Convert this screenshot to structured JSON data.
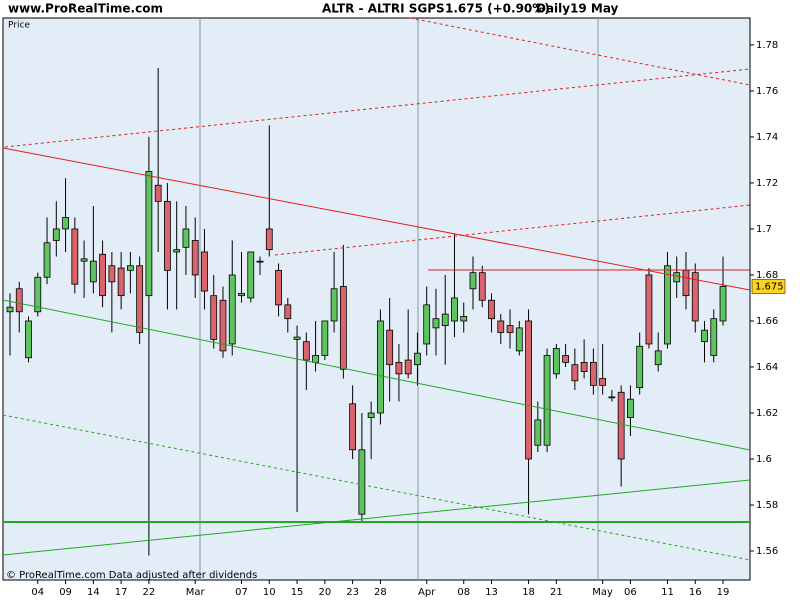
{
  "header": {
    "site": "www.ProRealTime.com",
    "title": "ALTR - ALTRI SGPS",
    "quote": "1.675 (+0.90%)",
    "period": "Daily",
    "date": "19 May"
  },
  "footer": "© ProRealTime.com  Data adjusted after dividends",
  "chart_data": {
    "type": "candlestick",
    "y_label": "Price",
    "categories": [
      null,
      null,
      null,
      "04",
      null,
      null,
      "09",
      null,
      null,
      "14",
      null,
      null,
      "17",
      null,
      null,
      "22",
      null,
      null,
      null,
      null,
      "Mar",
      null,
      null,
      null,
      null,
      "07",
      null,
      null,
      "10",
      null,
      null,
      "15",
      null,
      null,
      "20",
      null,
      null,
      "23",
      null,
      null,
      "28",
      null,
      null,
      null,
      null,
      "Apr",
      null,
      null,
      null,
      "08",
      null,
      null,
      "13",
      null,
      null,
      null,
      "18",
      null,
      null,
      "21",
      null,
      null,
      null,
      null,
      "May",
      null,
      null,
      "06",
      null,
      null,
      null,
      "11",
      null,
      null,
      "16",
      null,
      null,
      "19"
    ],
    "open": [
      1.664,
      1.674,
      1.644,
      1.664,
      1.679,
      1.695,
      1.7,
      1.7,
      1.686,
      1.677,
      1.689,
      1.684,
      1.683,
      1.682,
      1.684,
      1.671,
      1.719,
      1.712,
      1.69,
      1.692,
      1.695,
      1.69,
      1.671,
      1.669,
      1.65,
      1.671,
      1.67,
      1.686,
      1.7,
      1.682,
      1.667,
      1.652,
      1.651,
      1.642,
      1.645,
      1.66,
      1.675,
      1.624,
      1.576,
      1.618,
      1.62,
      1.656,
      1.642,
      1.643,
      1.641,
      1.65,
      1.657,
      1.658,
      1.66,
      1.66,
      1.674,
      1.681,
      1.669,
      1.66,
      1.658,
      1.647,
      1.66,
      1.606,
      1.606,
      1.637,
      1.645,
      1.641,
      1.642,
      1.642,
      1.635,
      1.627,
      1.629,
      1.618,
      1.631,
      1.68,
      1.641,
      1.65,
      1.677,
      1.682,
      1.681,
      1.651,
      1.645,
      1.66
    ],
    "high": [
      1.672,
      1.677,
      1.662,
      1.681,
      1.705,
      1.712,
      1.722,
      1.705,
      1.695,
      1.71,
      1.695,
      1.69,
      1.69,
      1.69,
      1.688,
      1.74,
      1.77,
      1.72,
      1.712,
      1.71,
      1.705,
      1.7,
      1.68,
      1.675,
      1.695,
      1.69,
      1.69,
      1.688,
      1.745,
      1.685,
      1.67,
      1.658,
      1.655,
      1.66,
      1.66,
      1.69,
      1.693,
      1.632,
      1.62,
      1.625,
      1.665,
      1.67,
      1.65,
      1.665,
      1.655,
      1.675,
      1.674,
      1.68,
      1.698,
      1.668,
      1.688,
      1.684,
      1.672,
      1.663,
      1.665,
      1.66,
      1.665,
      1.625,
      1.648,
      1.65,
      1.65,
      1.648,
      1.652,
      1.648,
      1.65,
      1.63,
      1.632,
      1.632,
      1.655,
      1.683,
      1.655,
      1.69,
      1.688,
      1.69,
      1.685,
      1.66,
      1.665,
      1.688
    ],
    "low": [
      1.645,
      1.655,
      1.642,
      1.662,
      1.676,
      1.688,
      1.69,
      1.672,
      1.67,
      1.672,
      1.666,
      1.655,
      1.665,
      1.672,
      1.65,
      1.558,
      1.69,
      1.665,
      1.665,
      1.68,
      1.67,
      1.665,
      1.648,
      1.644,
      1.645,
      1.668,
      1.668,
      1.68,
      1.688,
      1.662,
      1.655,
      1.577,
      1.63,
      1.638,
      1.643,
      1.655,
      1.635,
      1.6,
      1.573,
      1.6,
      1.615,
      1.625,
      1.625,
      1.635,
      1.632,
      1.645,
      1.645,
      1.641,
      1.653,
      1.655,
      1.665,
      1.666,
      1.655,
      1.65,
      1.648,
      1.645,
      1.576,
      1.603,
      1.603,
      1.635,
      1.64,
      1.63,
      1.635,
      1.628,
      1.628,
      1.625,
      1.588,
      1.61,
      1.628,
      1.648,
      1.638,
      1.648,
      1.67,
      1.665,
      1.655,
      1.642,
      1.642,
      1.658
    ],
    "close": [
      1.666,
      1.664,
      1.66,
      1.679,
      1.694,
      1.7,
      1.705,
      1.676,
      1.687,
      1.686,
      1.671,
      1.677,
      1.671,
      1.684,
      1.655,
      1.725,
      1.712,
      1.682,
      1.691,
      1.7,
      1.68,
      1.673,
      1.652,
      1.647,
      1.68,
      1.672,
      1.69,
      1.686,
      1.691,
      1.667,
      1.661,
      1.653,
      1.643,
      1.645,
      1.66,
      1.674,
      1.639,
      1.604,
      1.604,
      1.62,
      1.66,
      1.641,
      1.637,
      1.637,
      1.646,
      1.667,
      1.661,
      1.663,
      1.67,
      1.662,
      1.681,
      1.669,
      1.661,
      1.655,
      1.655,
      1.657,
      1.6,
      1.617,
      1.645,
      1.648,
      1.642,
      1.634,
      1.638,
      1.632,
      1.632,
      1.627,
      1.6,
      1.626,
      1.649,
      1.65,
      1.647,
      1.684,
      1.681,
      1.671,
      1.66,
      1.656,
      1.661,
      1.675
    ],
    "up_color": "#5fc35f",
    "down_color": "#d9646c",
    "ylim": [
      1.5474,
      1.7917
    ],
    "yticks": [
      1.56,
      1.58,
      1.6,
      1.62,
      1.64,
      1.66,
      1.68,
      1.7,
      1.72,
      1.74,
      1.76,
      1.78
    ],
    "last_price": 1.675,
    "last_price_color": "#ffd21e"
  }
}
